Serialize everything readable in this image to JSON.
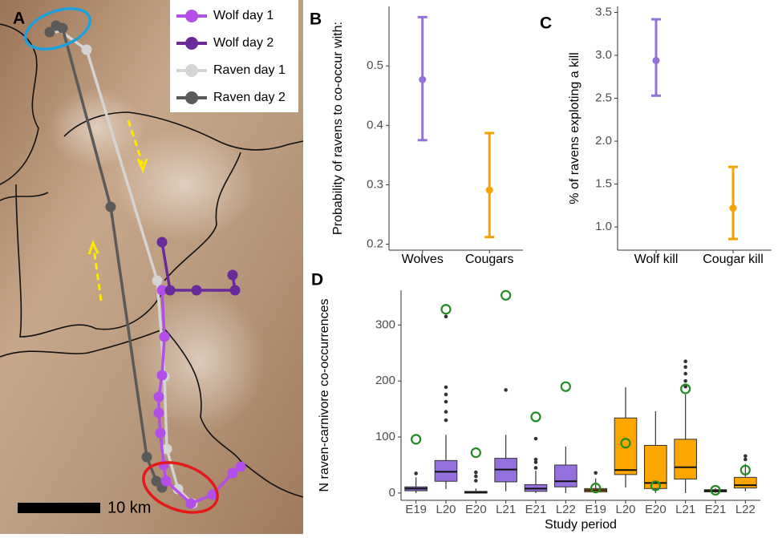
{
  "map": {
    "panel_label": "A",
    "scale_label": "10 km",
    "legend": [
      {
        "name": "Wolf day 1",
        "color": "#b44ee8"
      },
      {
        "name": "Wolf day 2",
        "color": "#6a2a9a"
      },
      {
        "name": "Raven day 1",
        "color": "#d4d4d4"
      },
      {
        "name": "Raven day 2",
        "color": "#5a5a5a"
      }
    ]
  },
  "chart_data": [
    {
      "type": "errorbar",
      "panel_label": "B",
      "y_label": "Probability of ravens to co-occur with:",
      "categories": [
        "Wolves",
        "Cougars"
      ],
      "values": [
        0.477,
        0.291
      ],
      "lower": [
        0.375,
        0.212
      ],
      "upper": [
        0.582,
        0.387
      ],
      "colors": [
        "#9370db",
        "#f5a300"
      ],
      "ylim": [
        0.19,
        0.6
      ],
      "yticks": [
        0.2,
        0.3,
        0.4,
        0.5
      ]
    },
    {
      "type": "errorbar",
      "panel_label": "C",
      "y_label": "% of ravens exploting a kill",
      "categories": [
        "Wolf kill",
        "Cougar kill"
      ],
      "values": [
        2.94,
        1.22
      ],
      "lower": [
        2.53,
        0.86
      ],
      "upper": [
        3.42,
        1.7
      ],
      "colors": [
        "#9370db",
        "#f5a300"
      ],
      "ylim": [
        0.73,
        3.57
      ],
      "yticks": [
        {
          "value": 1,
          "label": "1.0"
        },
        1.5,
        {
          "value": 2,
          "label": "2.0"
        },
        2.5,
        {
          "value": 3,
          "label": "3.0"
        },
        3.5
      ]
    },
    {
      "type": "box",
      "panel_label": "D",
      "y_label": "N raven-carnivore co-occurrences",
      "x_label": "Study period",
      "categories": [
        "E19",
        "L20",
        "E20",
        "L21",
        "E21",
        "L22",
        "E19",
        "L20",
        "E20",
        "L21",
        "E21",
        "L22"
      ],
      "observed_color": "#228b22",
      "ylim": [
        -13,
        362
      ],
      "yticks": [
        0,
        100,
        200,
        300
      ],
      "series": [
        {
          "color": "#9370db",
          "values": [
            {
              "min": 0,
              "q1": 4,
              "median": 8,
              "q3": 11,
              "max": 28,
              "outliers": [
                35
              ],
              "observed": 96
            },
            {
              "min": 7,
              "q1": 21,
              "median": 38,
              "q3": 58,
              "max": 104,
              "outliers": [
                130,
                145,
                163,
                176,
                189,
                315
              ],
              "observed": 328
            },
            {
              "min": 0,
              "q1": 0,
              "median": 1,
              "q3": 3,
              "max": 8,
              "outliers": [
                22,
                30,
                37
              ],
              "observed": 72
            },
            {
              "min": 3,
              "q1": 20,
              "median": 42,
              "q3": 62,
              "max": 104,
              "outliers": [
                184
              ],
              "observed": 353
            },
            {
              "min": 0,
              "q1": 3,
              "median": 8,
              "q3": 15,
              "max": 40,
              "outliers": [
                45,
                55,
                60,
                97
              ],
              "observed": 136
            },
            {
              "min": 0,
              "q1": 11,
              "median": 21,
              "q3": 50,
              "max": 83,
              "outliers": [],
              "observed": 190
            },
            null,
            null,
            null,
            null,
            null,
            null
          ]
        },
        {
          "color": "#ffa500",
          "values": [
            null,
            null,
            null,
            null,
            null,
            null,
            {
              "min": 0,
              "q1": 2,
              "median": 5,
              "q3": 8,
              "max": 26,
              "outliers": [
                36
              ],
              "observed": 9
            },
            {
              "min": 10,
              "q1": 33,
              "median": 41,
              "q3": 134,
              "max": 189,
              "outliers": [],
              "observed": 89
            },
            {
              "min": 0,
              "q1": 8,
              "median": 18,
              "q3": 85,
              "max": 146,
              "outliers": [],
              "observed": 13
            },
            {
              "min": 0,
              "q1": 25,
              "median": 46,
              "q3": 96,
              "max": 176,
              "outliers": [
                190,
                200,
                213,
                225,
                235
              ],
              "observed": 186
            },
            {
              "min": 0,
              "q1": 2,
              "median": 4,
              "q3": 6,
              "max": 9,
              "outliers": [],
              "observed": 5
            },
            {
              "min": 3,
              "q1": 9,
              "median": 14,
              "q3": 28,
              "max": 52,
              "outliers": [
                60,
                66
              ],
              "observed": 41
            }
          ]
        }
      ]
    }
  ]
}
